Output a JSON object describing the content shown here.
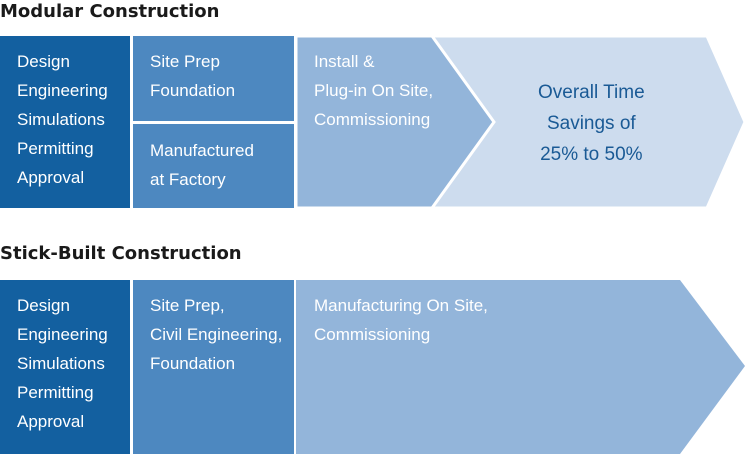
{
  "modular": {
    "heading": "Modular Construction",
    "design_block": "Design\nEngineering\nSimulations\nPermitting\nApproval",
    "site_prep_block": "Site Prep\nFoundation",
    "manufactured_block": "Manufactured\nat Factory",
    "install_block": "Install &\nPlug-in On Site,\nCommissioning",
    "savings_block": "Overall Time\nSavings of\n25% to 50%"
  },
  "stick_built": {
    "heading": "Stick-Built Construction",
    "design_block": "Design\nEngineering\nSimulations\nPermitting\nApproval",
    "site_prep_block": "Site Prep,\nCivil Engineering,\nFoundation",
    "manufacturing_block": "Manufacturing On Site,\nCommissioning"
  },
  "colors": {
    "dark_blue": "#1360a0",
    "mid_blue": "#4d88c0",
    "light_blue": "#93b5da",
    "pale_blue": "#cddcee",
    "savings_text": "#1a5a95"
  }
}
